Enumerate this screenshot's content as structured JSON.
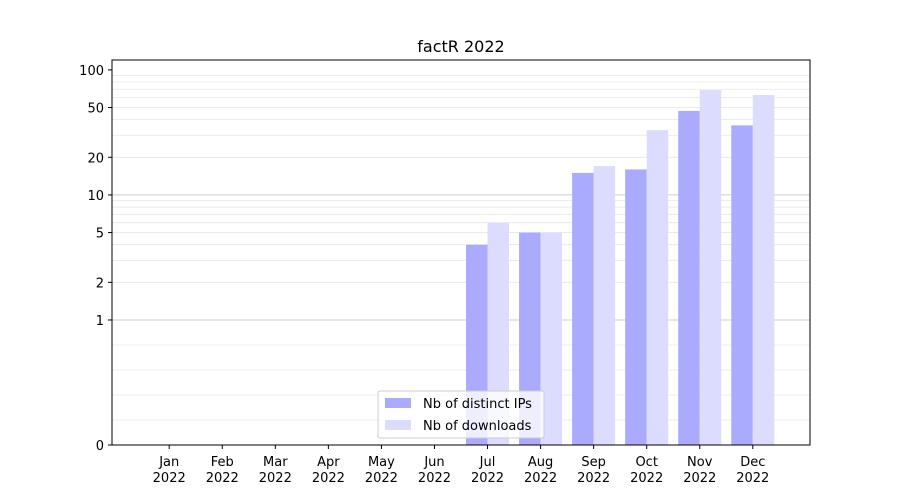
{
  "chart_data": {
    "type": "bar",
    "title": "factR 2022",
    "xlabel": "",
    "ylabel": "",
    "yscale": "symlog",
    "categories": [
      "Jan\n2022",
      "Feb\n2022",
      "Mar\n2022",
      "Apr\n2022",
      "May\n2022",
      "Jun\n2022",
      "Jul\n2022",
      "Aug\n2022",
      "Sep\n2022",
      "Oct\n2022",
      "Nov\n2022",
      "Dec\n2022"
    ],
    "series": [
      {
        "name": "Nb of distinct IPs",
        "color": "#aaaaff",
        "values": [
          0,
          0,
          0,
          0,
          0,
          0,
          4,
          5,
          15,
          16,
          47,
          36
        ]
      },
      {
        "name": "Nb of downloads",
        "color": "#dcdcff",
        "values": [
          0,
          0,
          0,
          0,
          0,
          0,
          6,
          5,
          17,
          33,
          69,
          63
        ]
      }
    ],
    "yticks": [
      0,
      1,
      2,
      5,
      10,
      20,
      50,
      100
    ],
    "ytick_labels": [
      "0",
      "1",
      "2",
      "5",
      "10",
      "20",
      "50",
      "100"
    ],
    "ylim": [
      0,
      120
    ],
    "grid": "y (minor, light)",
    "legend_position": "lower-center"
  }
}
